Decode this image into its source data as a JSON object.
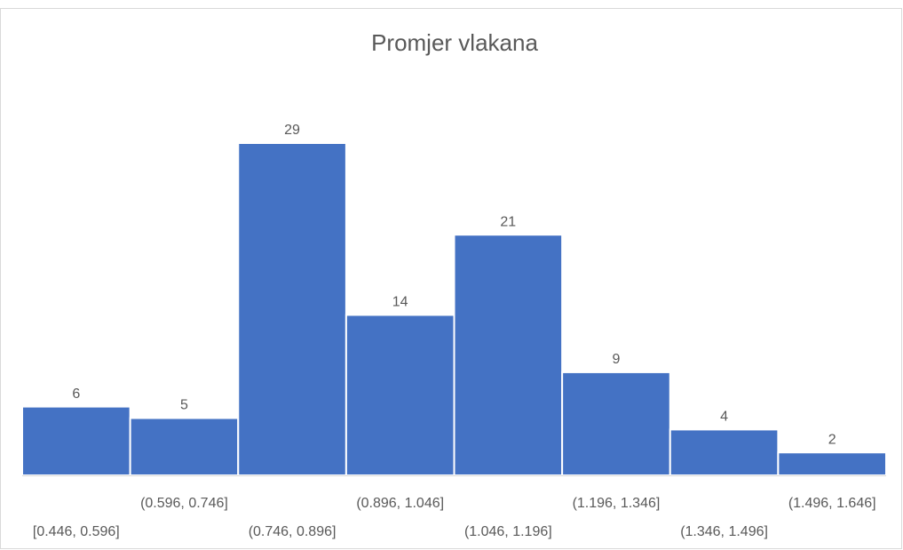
{
  "chart_data": {
    "type": "bar",
    "title": "Promjer vlakana",
    "categories": [
      "[0.446, 0.596]",
      "(0.596, 0.746]",
      "(0.746, 0.896]",
      "(0.896, 1.046]",
      "(1.046, 1.196]",
      "(1.196, 1.346]",
      "(1.346, 1.496]",
      "(1.496, 1.646]"
    ],
    "values": [
      6,
      5,
      29,
      14,
      21,
      9,
      4,
      2
    ],
    "color": "#4472c4"
  }
}
